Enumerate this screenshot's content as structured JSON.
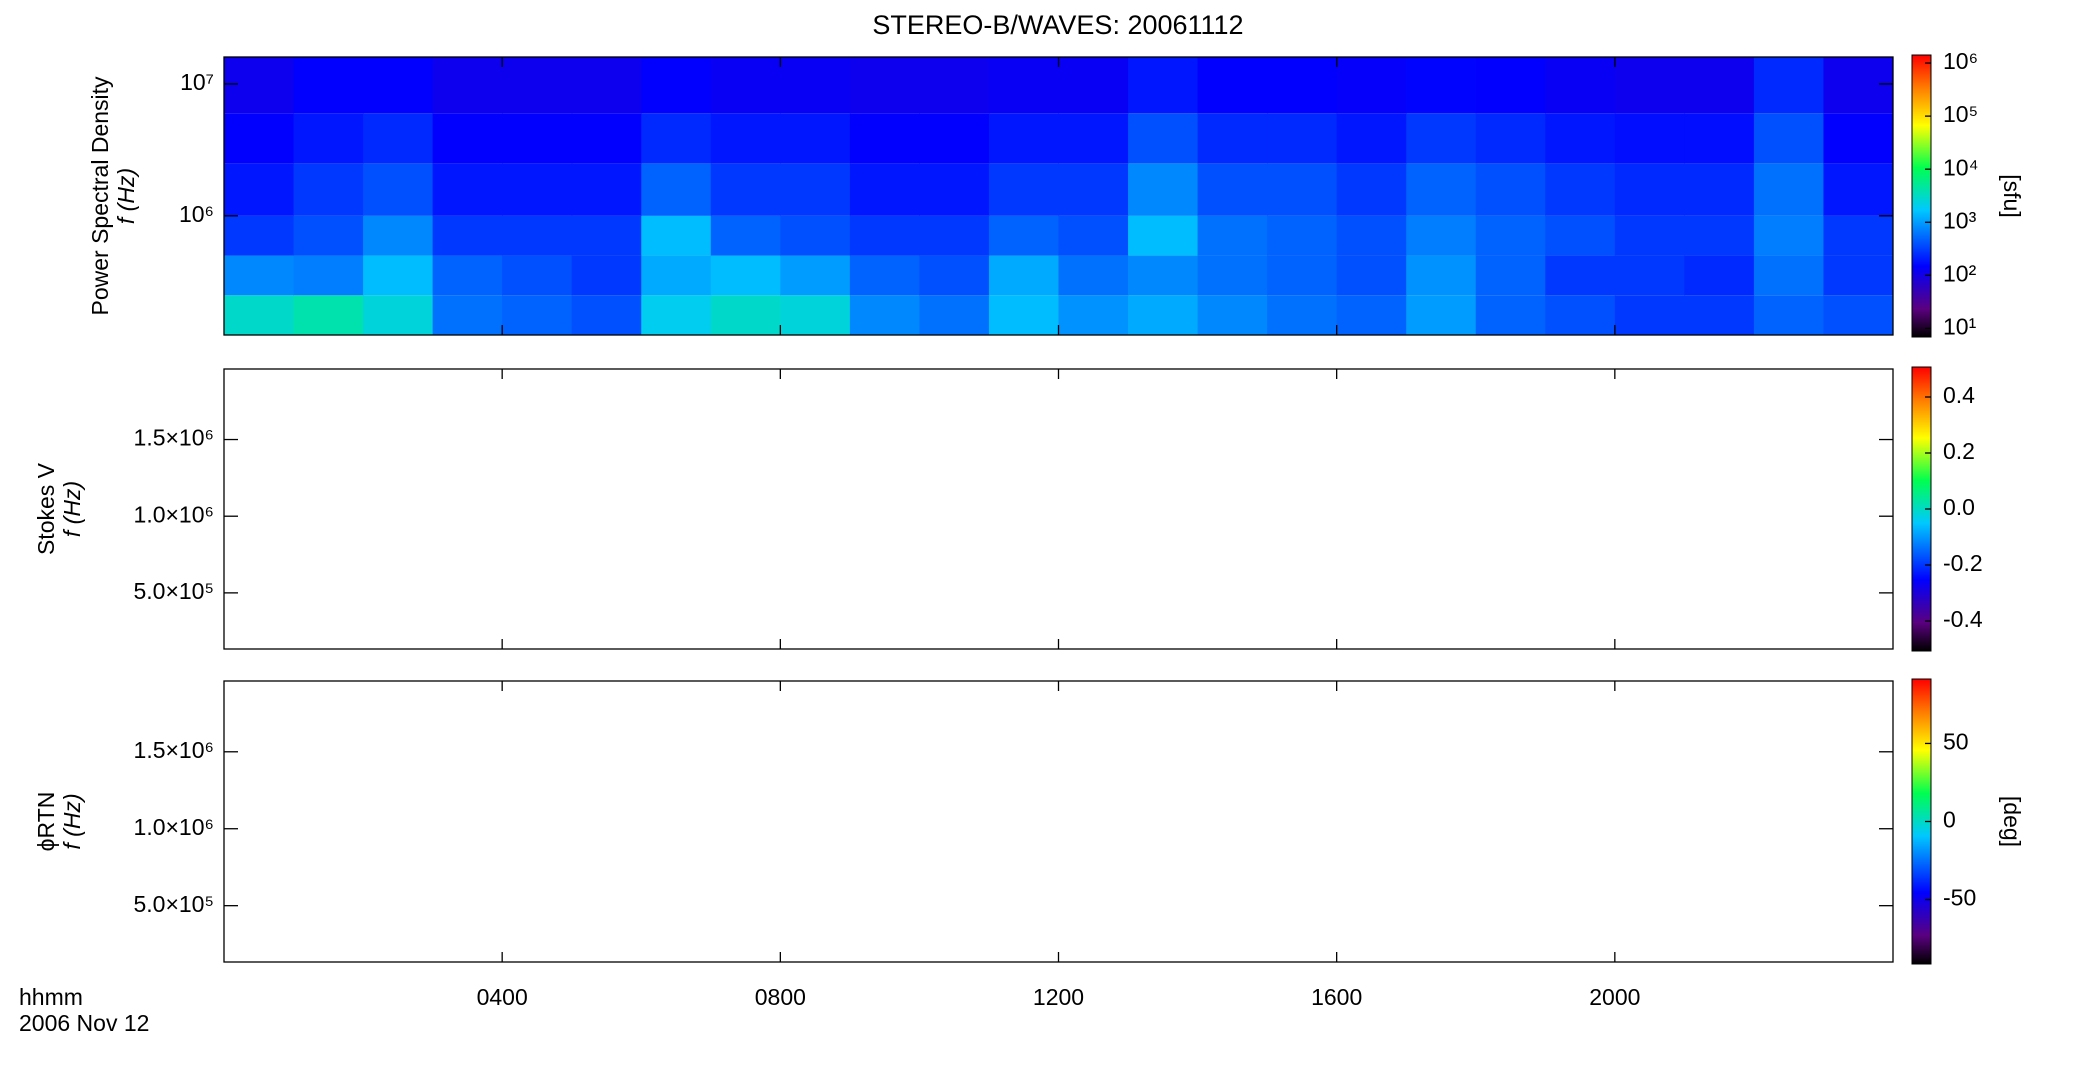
{
  "chart_data": [
    {
      "type": "heatmap",
      "title": "STEREO-B/WAVES: 20061112",
      "ylabel": [
        "Power Spectral Density",
        "f (Hz)"
      ],
      "x_edges": [
        0,
        1,
        2,
        3,
        4,
        5,
        6,
        7,
        8,
        9,
        10,
        11,
        12,
        13,
        14,
        15,
        16,
        17,
        18,
        19,
        20,
        21,
        22,
        23,
        24
      ],
      "y_edges": [
        125000,
        250000,
        500000,
        1000000,
        2500000,
        6000000,
        16000000
      ],
      "values": [
        [
          3000,
          4000,
          2500,
          600,
          500,
          400,
          2000,
          3000,
          2500,
          800,
          600,
          1500,
          900,
          1200,
          800,
          600,
          500,
          1000,
          500,
          400,
          300,
          300,
          500,
          400
        ],
        [
          800,
          700,
          1500,
          500,
          400,
          300,
          1200,
          1500,
          1000,
          500,
          400,
          1200,
          600,
          800,
          600,
          500,
          400,
          900,
          500,
          300,
          300,
          250,
          600,
          300
        ],
        [
          300,
          400,
          800,
          300,
          300,
          300,
          1500,
          500,
          400,
          300,
          300,
          500,
          400,
          1500,
          600,
          500,
          400,
          700,
          500,
          400,
          300,
          300,
          700,
          300
        ],
        [
          200,
          300,
          400,
          200,
          200,
          200,
          500,
          300,
          300,
          200,
          200,
          300,
          300,
          800,
          400,
          400,
          300,
          500,
          400,
          300,
          250,
          250,
          600,
          200
        ],
        [
          150,
          200,
          250,
          150,
          150,
          150,
          250,
          200,
          200,
          150,
          150,
          200,
          200,
          400,
          250,
          250,
          200,
          300,
          250,
          200,
          180,
          180,
          400,
          150
        ],
        [
          120,
          150,
          150,
          120,
          120,
          120,
          150,
          130,
          130,
          120,
          120,
          130,
          130,
          200,
          150,
          150,
          140,
          160,
          150,
          130,
          120,
          120,
          250,
          120
        ]
      ],
      "xlim": [
        0,
        24
      ],
      "xticks": [
        4,
        8,
        12,
        16,
        20
      ],
      "ylim": [
        125000,
        16000000
      ],
      "ylog": true,
      "yticks": [
        {
          "value": 1000000,
          "label": "10⁶"
        },
        {
          "value": 10000000,
          "label": "10⁷"
        }
      ],
      "colormap": "rainbow",
      "clog": true,
      "clim": [
        7.5,
        1300000
      ],
      "clabel": "[sfu]",
      "cticks": [
        {
          "value": 10,
          "label": "10¹"
        },
        {
          "value": 100,
          "label": "10²"
        },
        {
          "value": 1000,
          "label": "10³"
        },
        {
          "value": 10000,
          "label": "10⁴"
        },
        {
          "value": 100000,
          "label": "10⁵"
        },
        {
          "value": 1000000,
          "label": "10⁶"
        }
      ]
    },
    {
      "type": "heatmap",
      "ylabel": [
        "Stokes V",
        "f (Hz)"
      ],
      "xlim": [
        0,
        24
      ],
      "xticks": [
        4,
        8,
        12,
        16,
        20
      ],
      "ylim": [
        134000,
        1960000
      ],
      "yticks": [
        {
          "value": 500000,
          "label": "5.0×10⁵"
        },
        {
          "value": 1000000,
          "label": "1.0×10⁶"
        },
        {
          "value": 1500000,
          "label": "1.5×10⁶"
        }
      ],
      "colormap": "rainbow",
      "clim": [
        -0.5,
        0.5
      ],
      "cticks": [
        -0.4,
        -0.2,
        {
          "value": 0,
          "label": "0.0"
        },
        0.2,
        0.4
      ]
    },
    {
      "type": "heatmap",
      "ylabel": [
        "ϕRTN",
        "f (Hz)"
      ],
      "xlim": [
        0,
        24
      ],
      "xticks": [
        {
          "value": 4,
          "label": "0400"
        },
        {
          "value": 8,
          "label": "0800"
        },
        {
          "value": 12,
          "label": "1200"
        },
        {
          "value": 16,
          "label": "1600"
        },
        {
          "value": 20,
          "label": "2000"
        }
      ],
      "xlabel": "hhmm",
      "date": "2006 Nov 12",
      "ylim": [
        134000,
        1960000
      ],
      "yticks": [
        {
          "value": 500000,
          "label": "5.0×10⁵"
        },
        {
          "value": 1000000,
          "label": "1.0×10⁶"
        },
        {
          "value": 1500000,
          "label": "1.5×10⁶"
        }
      ],
      "colormap": "rainbow",
      "clim": [
        -90,
        90
      ],
      "clabel": "[deg]",
      "cticks": [
        -50,
        0,
        50
      ]
    }
  ]
}
